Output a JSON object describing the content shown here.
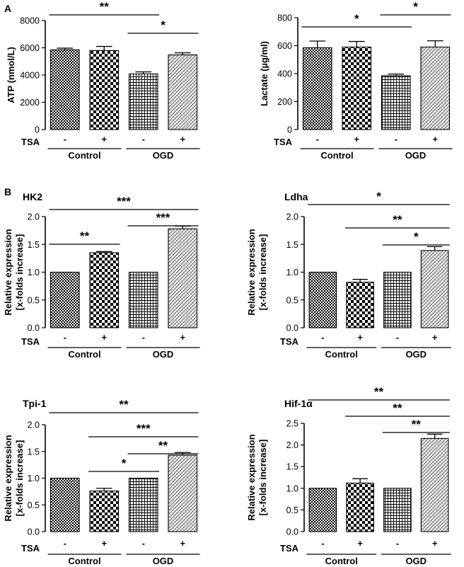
{
  "panel_letters": [
    "A",
    "B"
  ],
  "chart_data": [
    {
      "type": "bar",
      "title": "",
      "ylabel": "ATP (nmol/L)",
      "ylim": [
        0,
        8000
      ],
      "yticks": [
        0,
        2000,
        4000,
        6000,
        8000
      ],
      "ytick_labels": [
        "0",
        "2000",
        "4000",
        "6000",
        "8000"
      ],
      "tsa_label": "TSA",
      "tsa_signs": [
        "-",
        "+",
        "-",
        "+"
      ],
      "groups": [
        "Control",
        "OGD"
      ],
      "values": [
        5850,
        5800,
        4080,
        5480
      ],
      "errors": [
        120,
        300,
        150,
        150
      ],
      "significance": [
        {
          "from": 0,
          "to": 2,
          "label": "**"
        },
        {
          "from": 2,
          "to": 3,
          "label": "*"
        }
      ]
    },
    {
      "type": "bar",
      "title": "",
      "ylabel": "Lactate (µg/ml)",
      "ylim": [
        0,
        800
      ],
      "yticks": [
        0,
        200,
        400,
        600,
        800
      ],
      "ytick_labels": [
        "0",
        "200",
        "400",
        "600",
        "800"
      ],
      "tsa_label": "TSA",
      "tsa_signs": [
        "-",
        "+",
        "-",
        "+"
      ],
      "groups": [
        "Control",
        "OGD"
      ],
      "values": [
        585,
        590,
        385,
        590
      ],
      "errors": [
        48,
        40,
        12,
        45
      ],
      "significance": [
        {
          "from": 0,
          "to": 2,
          "label": "*"
        },
        {
          "from": 2,
          "to": 3,
          "label": "*"
        }
      ]
    },
    {
      "type": "bar",
      "title": "HK2",
      "ylabel": [
        "Relative expression",
        "[x-folds increase]"
      ],
      "ylim": [
        0,
        2.0
      ],
      "yticks": [
        0,
        0.5,
        1.0,
        1.5,
        2.0
      ],
      "ytick_labels": [
        "0.0",
        "0.5",
        "1.0",
        "1.5",
        "2.0"
      ],
      "tsa_label": "TSA",
      "tsa_signs": [
        "-",
        "+",
        "-",
        "+"
      ],
      "groups": [
        "Control",
        "OGD"
      ],
      "values": [
        1.0,
        1.35,
        1.0,
        1.78
      ],
      "errors": [
        0,
        0.02,
        0,
        0.05
      ],
      "significance": [
        {
          "from": 0,
          "to": 3,
          "label": "***"
        },
        {
          "from": 0,
          "to": 1,
          "label": "**"
        },
        {
          "from": 2,
          "to": 3,
          "label": "***"
        }
      ]
    },
    {
      "type": "bar",
      "title": "Ldha",
      "ylabel": [
        "Relative expression",
        "[x-folds increase]"
      ],
      "ylim": [
        0,
        2.0
      ],
      "yticks": [
        0,
        0.5,
        1.0,
        1.5,
        2.0
      ],
      "ytick_labels": [
        "0.0",
        "0.5",
        "1.0",
        "1.5",
        "2.0"
      ],
      "tsa_label": "TSA",
      "tsa_signs": [
        "-",
        "+",
        "-",
        "+"
      ],
      "groups": [
        "Control",
        "OGD"
      ],
      "values": [
        1.0,
        0.82,
        1.0,
        1.39
      ],
      "errors": [
        0,
        0.05,
        0,
        0.07
      ],
      "significance": [
        {
          "from": 0,
          "to": 3,
          "label": "*"
        },
        {
          "from": 1,
          "to": 3,
          "label": "**"
        },
        {
          "from": 2,
          "to": 3,
          "label": "*"
        }
      ]
    },
    {
      "type": "bar",
      "title": "Tpi-1",
      "ylabel": [
        "Relative expression",
        "[x-folds increase]"
      ],
      "ylim": [
        0,
        2.0
      ],
      "yticks": [
        0,
        0.5,
        1.0,
        1.5,
        2.0
      ],
      "ytick_labels": [
        "0.0",
        "0.5",
        "1.0",
        "1.5",
        "2.0"
      ],
      "tsa_label": "TSA",
      "tsa_signs": [
        "-",
        "+",
        "-",
        "+"
      ],
      "groups": [
        "Control",
        "OGD"
      ],
      "values": [
        1.0,
        0.76,
        1.0,
        1.43
      ],
      "errors": [
        0,
        0.05,
        0,
        0.05
      ],
      "significance": [
        {
          "from": 0,
          "to": 3,
          "label": "**"
        },
        {
          "from": 1,
          "to": 3,
          "label": "***"
        },
        {
          "from": 2,
          "to": 3,
          "label": "**"
        },
        {
          "from": 1,
          "to": 2,
          "label": "*"
        }
      ]
    },
    {
      "type": "bar",
      "title": "Hif-1α",
      "ylabel": [
        "Relative expression",
        "[x-folds increase]"
      ],
      "ylim": [
        0,
        2.5
      ],
      "yticks": [
        0,
        0.5,
        1.0,
        1.5,
        2.0,
        2.5
      ],
      "ytick_labels": [
        "0.0",
        "0.5",
        "1.0",
        "1.5",
        "2.0",
        "2.5"
      ],
      "tsa_label": "TSA",
      "tsa_signs": [
        "-",
        "+",
        "-",
        "+"
      ],
      "groups": [
        "Control",
        "OGD"
      ],
      "values": [
        1.0,
        1.12,
        1.0,
        2.15
      ],
      "errors": [
        0,
        0.1,
        0,
        0.1
      ],
      "significance": [
        {
          "from": 0,
          "to": 3,
          "label": "**"
        },
        {
          "from": 1,
          "to": 3,
          "label": "**"
        },
        {
          "from": 2,
          "to": 3,
          "label": "**"
        }
      ]
    }
  ]
}
